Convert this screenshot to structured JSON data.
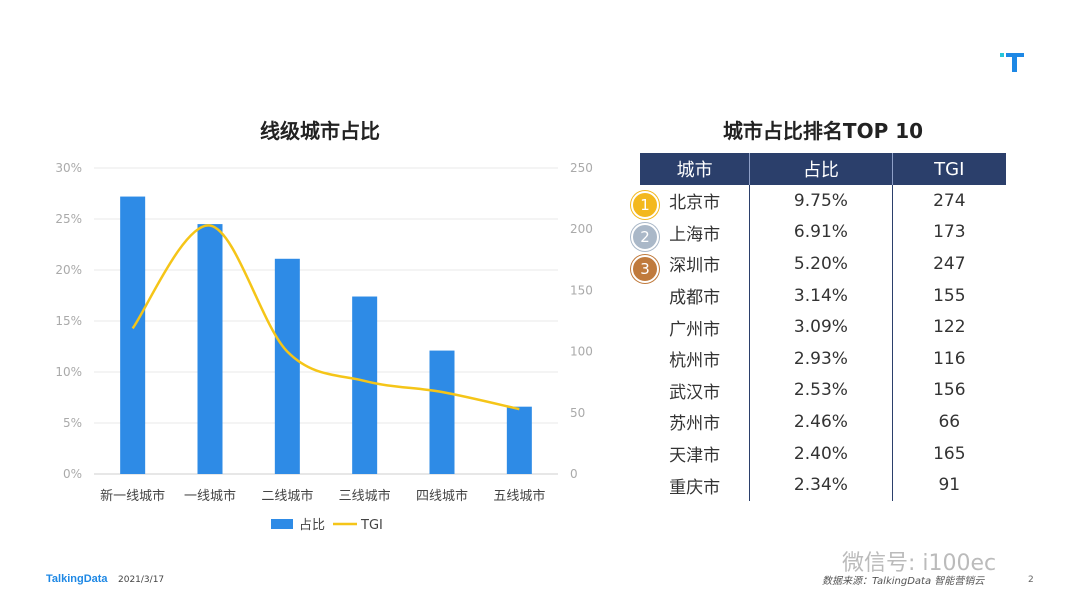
{
  "chart_data": {
    "type": "bar",
    "title": "线级城市占比",
    "categories": [
      "新一线城市",
      "一线城市",
      "二线城市",
      "三线城市",
      "四线城市",
      "五线城市"
    ],
    "series": [
      {
        "name": "占比",
        "type": "bar",
        "axis": "left",
        "color": "#2e8be6",
        "values": [
          27.2,
          24.5,
          21.1,
          17.4,
          12.1,
          6.6
        ]
      },
      {
        "name": "TGI",
        "type": "line",
        "axis": "right",
        "color": "#f5c518",
        "values": [
          119,
          203,
          100,
          76,
          67,
          53
        ]
      }
    ],
    "left_axis": {
      "ticks": [
        "0%",
        "5%",
        "10%",
        "15%",
        "20%",
        "25%",
        "30%"
      ],
      "ylim": [
        0,
        30
      ]
    },
    "right_axis": {
      "ticks": [
        "0",
        "50",
        "100",
        "150",
        "200",
        "250"
      ],
      "ylim": [
        0,
        250
      ]
    },
    "legend": [
      "占比",
      "TGI"
    ],
    "legend_position": "bottom",
    "grid": true
  },
  "table": {
    "title": "城市占比排名TOP 10",
    "headers": [
      "城市",
      "占比",
      "TGI"
    ],
    "rows": [
      [
        "北京市",
        "9.75%",
        "274"
      ],
      [
        "上海市",
        "6.91%",
        "173"
      ],
      [
        "深圳市",
        "5.20%",
        "247"
      ],
      [
        "成都市",
        "3.14%",
        "155"
      ],
      [
        "广州市",
        "3.09%",
        "122"
      ],
      [
        "杭州市",
        "2.93%",
        "116"
      ],
      [
        "武汉市",
        "2.53%",
        "156"
      ],
      [
        "苏州市",
        "2.46%",
        "66"
      ],
      [
        "天津市",
        "2.40%",
        "165"
      ],
      [
        "重庆市",
        "2.34%",
        "91"
      ]
    ],
    "medals": [
      {
        "label": "1",
        "color": "#f3b81e"
      },
      {
        "label": "2",
        "color": "#aab8c8"
      },
      {
        "label": "3",
        "color": "#c07a3c"
      }
    ]
  },
  "footer": {
    "brand": "TalkingData",
    "date": "2021/3/17",
    "source": "数据来源：TalkingData 智能营销云",
    "page": "2",
    "watermark": "微信号: i100ec"
  },
  "colors": {
    "header_bg": "#2b3f6b",
    "brand": "#1e88e5",
    "logo": "#26c6da"
  }
}
